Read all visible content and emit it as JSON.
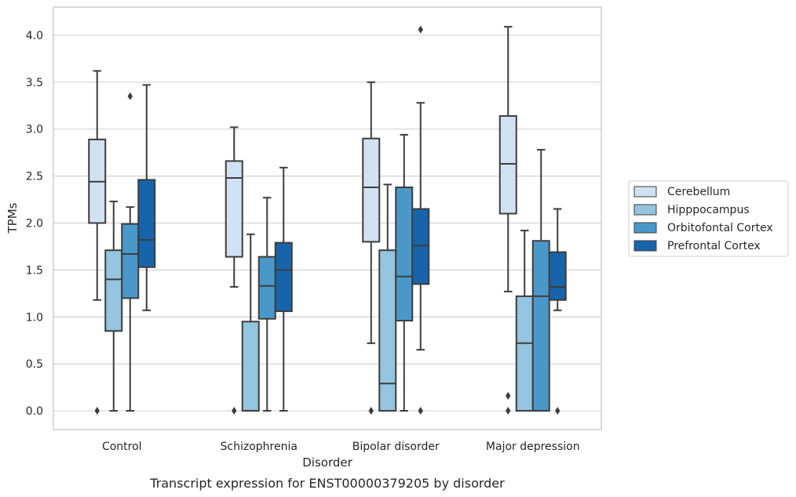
{
  "chart_data": {
    "type": "box",
    "xlabel": "Disorder",
    "ylabel": "TPMs",
    "caption": "Transcript expression for ENST00000379205 by disorder",
    "ylim": [
      -0.2,
      4.3
    ],
    "yticks": [
      "0.0",
      "0.5",
      "1.0",
      "1.5",
      "2.0",
      "2.5",
      "3.0",
      "3.5",
      "4.0"
    ],
    "grid": "horizontal",
    "legend_position": "right",
    "categories": [
      "Control",
      "Schizophrenia",
      "Bipolar disorder",
      "Major depression"
    ],
    "series": [
      {
        "name": "Cerebellum",
        "color": "#d0e1f2",
        "boxes": [
          {
            "whisker_low": 1.18,
            "q1": 2.0,
            "median": 2.44,
            "q3": 2.89,
            "whisker_high": 3.62,
            "outliers": [
              0.0
            ]
          },
          {
            "whisker_low": 1.32,
            "q1": 1.64,
            "median": 2.48,
            "q3": 2.66,
            "whisker_high": 3.02,
            "outliers": [
              0.0
            ]
          },
          {
            "whisker_low": 0.72,
            "q1": 1.8,
            "median": 2.38,
            "q3": 2.9,
            "whisker_high": 3.5,
            "outliers": [
              0.0
            ]
          },
          {
            "whisker_low": 1.27,
            "q1": 2.1,
            "median": 2.63,
            "q3": 3.14,
            "whisker_high": 4.09,
            "outliers": [
              0.0,
              0.16
            ]
          }
        ]
      },
      {
        "name": "Hipppocampus",
        "color": "#94c4df",
        "boxes": [
          {
            "whisker_low": 0.0,
            "q1": 0.85,
            "median": 1.4,
            "q3": 1.71,
            "whisker_high": 2.23,
            "outliers": []
          },
          {
            "whisker_low": 0.0,
            "q1": 0.0,
            "median": 0.0,
            "q3": 0.95,
            "whisker_high": 1.88,
            "outliers": []
          },
          {
            "whisker_low": 0.0,
            "q1": 0.0,
            "median": 0.29,
            "q3": 1.71,
            "whisker_high": 2.41,
            "outliers": []
          },
          {
            "whisker_low": 0.0,
            "q1": 0.0,
            "median": 0.72,
            "q3": 1.22,
            "whisker_high": 1.92,
            "outliers": []
          }
        ]
      },
      {
        "name": "Orbitofontal Cortex",
        "color": "#4a98c9",
        "boxes": [
          {
            "whisker_low": 0.0,
            "q1": 1.2,
            "median": 1.67,
            "q3": 1.99,
            "whisker_high": 2.17,
            "outliers": [
              3.35
            ]
          },
          {
            "whisker_low": 0.0,
            "q1": 0.98,
            "median": 1.33,
            "q3": 1.64,
            "whisker_high": 2.27,
            "outliers": []
          },
          {
            "whisker_low": 0.0,
            "q1": 0.96,
            "median": 1.43,
            "q3": 2.38,
            "whisker_high": 2.94,
            "outliers": []
          },
          {
            "whisker_low": 0.0,
            "q1": 0.0,
            "median": 1.22,
            "q3": 1.81,
            "whisker_high": 2.78,
            "outliers": []
          }
        ]
      },
      {
        "name": "Prefrontal Cortex",
        "color": "#1764ab",
        "boxes": [
          {
            "whisker_low": 1.07,
            "q1": 1.53,
            "median": 1.82,
            "q3": 2.46,
            "whisker_high": 3.47,
            "outliers": []
          },
          {
            "whisker_low": 0.0,
            "q1": 1.06,
            "median": 1.5,
            "q3": 1.79,
            "whisker_high": 2.59,
            "outliers": []
          },
          {
            "whisker_low": 0.65,
            "q1": 1.35,
            "median": 1.76,
            "q3": 2.15,
            "whisker_high": 3.28,
            "outliers": [
              0.0,
              4.06
            ]
          },
          {
            "whisker_low": 1.07,
            "q1": 1.18,
            "median": 1.32,
            "q3": 1.69,
            "whisker_high": 2.15,
            "outliers": [
              0.0
            ]
          }
        ]
      }
    ]
  }
}
